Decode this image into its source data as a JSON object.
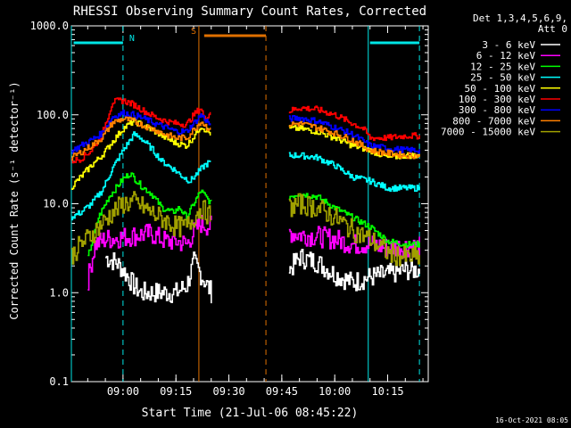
{
  "chart_data": {
    "type": "line",
    "title": "RHESSI Observing Summary Count Rates, Corrected",
    "xlabel": "Start Time (21-Jul-06 08:45:22)",
    "ylabel": "Corrected Count Rate (s⁻¹ detector⁻¹)",
    "yscale": "log",
    "ylim": [
      0.1,
      1000
    ],
    "yticks": [
      "0.1",
      "1.0",
      "10.0",
      "100.0",
      "1000.0"
    ],
    "xlim": [
      "08:45:22",
      "10:26:30"
    ],
    "xticks": [
      "09:00",
      "09:15",
      "09:30",
      "09:45",
      "10:00",
      "10:15"
    ],
    "legend_position": "top-right",
    "legend_title": [
      "Det 1,3,4,5,6,9,",
      "Att 0"
    ],
    "footer_date": "16-Oct-2021 08:05",
    "markers": [
      {
        "label": "N",
        "start": "08:46:00",
        "end": "09:00:00",
        "color": "#00e5e5"
      },
      {
        "label": "S",
        "start": "09:23:00",
        "end": "09:40:30",
        "color": "#e07000"
      },
      {
        "label": "",
        "start": "10:10:00",
        "end": "10:24:00",
        "color": "#00e5e5"
      }
    ],
    "vlines": [
      {
        "t": "08:45:22",
        "style": "solid",
        "color": "#00e5e5"
      },
      {
        "t": "09:00:00",
        "style": "dashed",
        "color": "#00e5e5"
      },
      {
        "t": "09:21:30",
        "style": "solid",
        "color": "#e07000"
      },
      {
        "t": "09:40:30",
        "style": "dashed",
        "color": "#e07000"
      },
      {
        "t": "10:09:30",
        "style": "solid",
        "color": "#00e5e5"
      },
      {
        "t": "10:24:00",
        "style": "dashed",
        "color": "#00e5e5"
      }
    ],
    "segments": [
      [
        "08:45:22",
        "09:25:00"
      ],
      [
        "09:47:00",
        "10:26:30"
      ]
    ],
    "series": [
      {
        "name": "3 - 6 keV",
        "color": "#ffffff",
        "points": [
          [
            "08:55",
            2.5
          ],
          [
            "08:58",
            2.2
          ],
          [
            "09:00",
            1.8
          ],
          [
            "09:03",
            1.2
          ],
          [
            "09:05",
            1.0
          ],
          [
            "09:08",
            1.0
          ],
          [
            "09:12",
            1.0
          ],
          [
            "09:15",
            1.0
          ],
          [
            "09:18",
            1.2
          ],
          [
            "09:20",
            2.2
          ],
          [
            "09:22",
            1.6
          ],
          [
            "09:25",
            1.0
          ],
          [
            "09:47",
            1.8
          ],
          [
            "09:50",
            2.5
          ],
          [
            "09:55",
            2.2
          ],
          [
            "10:00",
            1.6
          ],
          [
            "10:05",
            1.3
          ],
          [
            "10:10",
            1.5
          ],
          [
            "10:15",
            1.6
          ],
          [
            "10:20",
            1.8
          ],
          [
            "10:24",
            1.8
          ]
        ]
      },
      {
        "name": "6 - 12 keV",
        "color": "#ff00ff",
        "points": [
          [
            "08:50",
            1.4
          ],
          [
            "08:52",
            3.5
          ],
          [
            "08:55",
            4.0
          ],
          [
            "09:00",
            4.2
          ],
          [
            "09:05",
            4.5
          ],
          [
            "09:08",
            4.6
          ],
          [
            "09:12",
            3.8
          ],
          [
            "09:15",
            3.8
          ],
          [
            "09:18",
            3.5
          ],
          [
            "09:20",
            4.8
          ],
          [
            "09:22",
            6.0
          ],
          [
            "09:25",
            5.5
          ],
          [
            "09:47",
            4.8
          ],
          [
            "09:50",
            4.5
          ],
          [
            "09:55",
            4.3
          ],
          [
            "10:00",
            4.0
          ],
          [
            "10:05",
            3.5
          ],
          [
            "10:10",
            3.5
          ],
          [
            "10:15",
            3.2
          ],
          [
            "10:20",
            3.3
          ],
          [
            "10:24",
            3.3
          ]
        ]
      },
      {
        "name": "12 - 25 keV",
        "color": "#00ff00",
        "points": [
          [
            "08:50",
            2.5
          ],
          [
            "08:53",
            7.0
          ],
          [
            "08:56",
            12
          ],
          [
            "09:00",
            19
          ],
          [
            "09:02",
            22
          ],
          [
            "09:05",
            16
          ],
          [
            "09:08",
            13
          ],
          [
            "09:11",
            9
          ],
          [
            "09:14",
            8
          ],
          [
            "09:16",
            9
          ],
          [
            "09:18",
            7
          ],
          [
            "09:20",
            10
          ],
          [
            "09:22",
            14
          ],
          [
            "09:25",
            10
          ],
          [
            "09:47",
            12
          ],
          [
            "09:50",
            13
          ],
          [
            "09:55",
            12
          ],
          [
            "10:00",
            9
          ],
          [
            "10:05",
            7
          ],
          [
            "10:10",
            5.5
          ],
          [
            "10:15",
            3.8
          ],
          [
            "10:20",
            3.5
          ],
          [
            "10:24",
            3.5
          ]
        ]
      },
      {
        "name": "25 - 50 keV",
        "color": "#00ffff",
        "points": [
          [
            "08:45",
            7
          ],
          [
            "08:48",
            8
          ],
          [
            "08:51",
            10
          ],
          [
            "08:54",
            14
          ],
          [
            "08:57",
            25
          ],
          [
            "09:00",
            40
          ],
          [
            "09:03",
            60
          ],
          [
            "09:05",
            55
          ],
          [
            "09:08",
            42
          ],
          [
            "09:11",
            30
          ],
          [
            "09:14",
            25
          ],
          [
            "09:17",
            20
          ],
          [
            "09:19",
            18
          ],
          [
            "09:21",
            22
          ],
          [
            "09:23",
            27
          ],
          [
            "09:25",
            30
          ],
          [
            "09:47",
            35
          ],
          [
            "09:50",
            35
          ],
          [
            "09:55",
            33
          ],
          [
            "10:00",
            27
          ],
          [
            "10:05",
            20
          ],
          [
            "10:10",
            18
          ],
          [
            "10:15",
            15
          ],
          [
            "10:20",
            15
          ],
          [
            "10:24",
            15
          ]
        ]
      },
      {
        "name": "50 - 100 keV",
        "color": "#ffff00",
        "points": [
          [
            "08:45",
            15
          ],
          [
            "08:48",
            20
          ],
          [
            "08:51",
            27
          ],
          [
            "08:54",
            35
          ],
          [
            "08:57",
            50
          ],
          [
            "09:00",
            70
          ],
          [
            "09:03",
            85
          ],
          [
            "09:06",
            75
          ],
          [
            "09:09",
            65
          ],
          [
            "09:12",
            55
          ],
          [
            "09:15",
            48
          ],
          [
            "09:18",
            45
          ],
          [
            "09:20",
            57
          ],
          [
            "09:22",
            75
          ],
          [
            "09:25",
            60
          ],
          [
            "09:47",
            70
          ],
          [
            "09:50",
            70
          ],
          [
            "09:55",
            65
          ],
          [
            "10:00",
            55
          ],
          [
            "10:05",
            45
          ],
          [
            "10:10",
            40
          ],
          [
            "10:15",
            33
          ],
          [
            "10:20",
            35
          ],
          [
            "10:24",
            35
          ]
        ]
      },
      {
        "name": "100 - 300 keV",
        "color": "#ff0000",
        "points": [
          [
            "08:45",
            30
          ],
          [
            "08:48",
            32
          ],
          [
            "08:51",
            40
          ],
          [
            "08:54",
            60
          ],
          [
            "08:57",
            140
          ],
          [
            "09:00",
            145
          ],
          [
            "09:03",
            130
          ],
          [
            "09:06",
            110
          ],
          [
            "09:09",
            95
          ],
          [
            "09:12",
            85
          ],
          [
            "09:15",
            80
          ],
          [
            "09:18",
            78
          ],
          [
            "09:20",
            100
          ],
          [
            "09:22",
            120
          ],
          [
            "09:23",
            90
          ],
          [
            "09:25",
            110
          ],
          [
            "09:47",
            110
          ],
          [
            "09:50",
            120
          ],
          [
            "09:55",
            115
          ],
          [
            "10:00",
            100
          ],
          [
            "10:05",
            80
          ],
          [
            "10:08",
            70
          ],
          [
            "10:10",
            55
          ],
          [
            "10:15",
            55
          ],
          [
            "10:20",
            58
          ],
          [
            "10:24",
            58
          ]
        ]
      },
      {
        "name": "300 - 800 keV",
        "color": "#0000ff",
        "points": [
          [
            "08:45",
            38
          ],
          [
            "08:48",
            45
          ],
          [
            "08:51",
            52
          ],
          [
            "08:54",
            62
          ],
          [
            "08:57",
            95
          ],
          [
            "09:00",
            105
          ],
          [
            "09:03",
            100
          ],
          [
            "09:06",
            90
          ],
          [
            "09:09",
            80
          ],
          [
            "09:12",
            72
          ],
          [
            "09:15",
            65
          ],
          [
            "09:18",
            65
          ],
          [
            "09:20",
            80
          ],
          [
            "09:22",
            100
          ],
          [
            "09:25",
            75
          ],
          [
            "09:47",
            90
          ],
          [
            "09:50",
            92
          ],
          [
            "09:55",
            85
          ],
          [
            "10:00",
            72
          ],
          [
            "10:05",
            60
          ],
          [
            "10:10",
            45
          ],
          [
            "10:15",
            42
          ],
          [
            "10:20",
            40
          ],
          [
            "10:24",
            40
          ]
        ]
      },
      {
        "name": "800 - 7000 keV",
        "color": "#ff8000",
        "points": [
          [
            "08:45",
            32
          ],
          [
            "08:48",
            38
          ],
          [
            "08:51",
            45
          ],
          [
            "08:54",
            55
          ],
          [
            "08:57",
            82
          ],
          [
            "09:00",
            90
          ],
          [
            "09:03",
            85
          ],
          [
            "09:06",
            75
          ],
          [
            "09:09",
            68
          ],
          [
            "09:12",
            60
          ],
          [
            "09:15",
            55
          ],
          [
            "09:18",
            55
          ],
          [
            "09:20",
            68
          ],
          [
            "09:22",
            85
          ],
          [
            "09:25",
            65
          ],
          [
            "09:47",
            78
          ],
          [
            "09:50",
            80
          ],
          [
            "09:55",
            72
          ],
          [
            "10:00",
            62
          ],
          [
            "10:05",
            52
          ],
          [
            "10:10",
            40
          ],
          [
            "10:15",
            37
          ],
          [
            "10:20",
            35
          ],
          [
            "10:24",
            35
          ]
        ]
      },
      {
        "name": "7000 - 15000 keV",
        "color": "#a0a000",
        "points": [
          [
            "08:45",
            2.5
          ],
          [
            "08:48",
            3.5
          ],
          [
            "08:51",
            4.5
          ],
          [
            "08:54",
            6
          ],
          [
            "08:57",
            8
          ],
          [
            "09:00",
            10
          ],
          [
            "09:03",
            10.5
          ],
          [
            "09:06",
            9
          ],
          [
            "09:09",
            7.5
          ],
          [
            "09:12",
            6.5
          ],
          [
            "09:15",
            5.5
          ],
          [
            "09:18",
            5.5
          ],
          [
            "09:20",
            7
          ],
          [
            "09:22",
            9
          ],
          [
            "09:25",
            7
          ],
          [
            "09:47",
            9
          ],
          [
            "09:50",
            10
          ],
          [
            "09:55",
            9
          ],
          [
            "10:00",
            7
          ],
          [
            "10:05",
            5
          ],
          [
            "10:10",
            4
          ],
          [
            "10:15",
            2.8
          ],
          [
            "10:20",
            2.5
          ],
          [
            "10:24",
            2.5
          ]
        ]
      }
    ]
  }
}
